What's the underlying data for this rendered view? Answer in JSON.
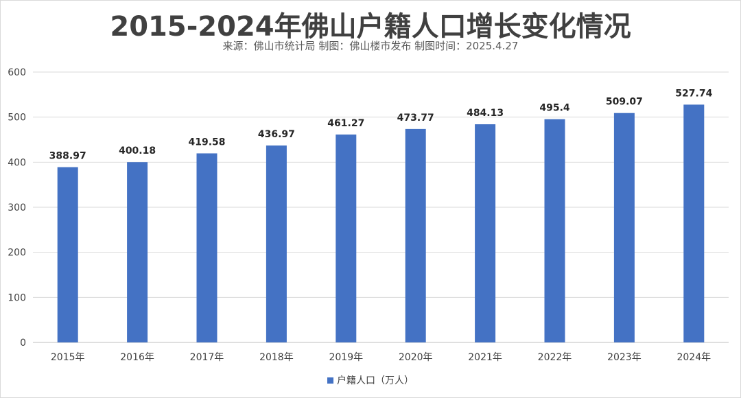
{
  "chart_data": {
    "type": "bar",
    "title": "2015-2024年佛山户籍人口增长变化情况",
    "subtitle": "来源：佛山市统计局  制图：佛山楼市发布  制图时间：2025.4.27",
    "categories": [
      "2015年",
      "2016年",
      "2017年",
      "2018年",
      "2019年",
      "2020年",
      "2021年",
      "2022年",
      "2023年",
      "2024年"
    ],
    "series": [
      {
        "name": "户籍人口（万人）",
        "values": [
          388.97,
          400.18,
          419.58,
          436.97,
          461.27,
          473.77,
          484.13,
          495.4,
          509.07,
          527.74
        ],
        "labels": [
          "388.97",
          "400.18",
          "419.58",
          "436.97",
          "461.27",
          "473.77",
          "484.13",
          "495.4",
          "509.07",
          "527.74"
        ],
        "color": "#4472c4"
      }
    ],
    "ylim": [
      0,
      600
    ],
    "yticks": [
      0,
      100,
      200,
      300,
      400,
      500,
      600
    ],
    "xlabel": "",
    "ylabel": "",
    "grid": true,
    "legend": "bottom"
  },
  "colors": {
    "bar": "#4472c4",
    "grid": "#d9d9d9",
    "text": "#404040"
  }
}
